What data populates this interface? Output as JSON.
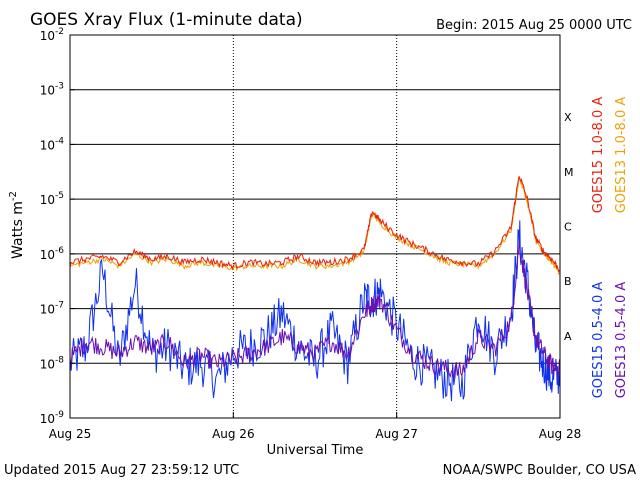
{
  "chart_data": {
    "type": "line",
    "title": "GOES Xray Flux (1-minute data)",
    "begin_label": "Begin:  2015 Aug 25 0000 UTC",
    "xlabel": "Universal Time",
    "ylabel_main": "Watts m",
    "ylabel_exp": "-2",
    "x_ticks": [
      "Aug 25",
      "Aug 26",
      "Aug 27",
      "Aug 28"
    ],
    "x_range_days": [
      0,
      3
    ],
    "y_scale": "log",
    "ylim": [
      1e-09,
      0.01
    ],
    "y_ticks": [
      {
        "base": "10",
        "exp": "-2",
        "value": 0.01
      },
      {
        "base": "10",
        "exp": "-3",
        "value": 0.001
      },
      {
        "base": "10",
        "exp": "-4",
        "value": 0.0001
      },
      {
        "base": "10",
        "exp": "-5",
        "value": 1e-05
      },
      {
        "base": "10",
        "exp": "-6",
        "value": 1e-06
      },
      {
        "base": "10",
        "exp": "-7",
        "value": 1e-07
      },
      {
        "base": "10",
        "exp": "-8",
        "value": 1e-08
      },
      {
        "base": "10",
        "exp": "-9",
        "value": 1e-09
      }
    ],
    "flare_classes": [
      {
        "label": "X",
        "value": 0.000316
      },
      {
        "label": "M",
        "value": 3.16e-05
      },
      {
        "label": "C",
        "value": 3.16e-06
      },
      {
        "label": "B",
        "value": 3.16e-07
      },
      {
        "label": "A",
        "value": 3.16e-08
      }
    ],
    "series": [
      {
        "name": "GOES15 1.0-8.0 A",
        "color": "#e8200c",
        "points": [
          [
            0.0,
            7e-07
          ],
          [
            0.1,
            8e-07
          ],
          [
            0.2,
            9e-07
          ],
          [
            0.3,
            7e-07
          ],
          [
            0.4,
            1.1e-06
          ],
          [
            0.5,
            8e-07
          ],
          [
            0.6,
            9e-07
          ],
          [
            0.7,
            7e-07
          ],
          [
            0.8,
            8e-07
          ],
          [
            0.9,
            7e-07
          ],
          [
            1.0,
            6e-07
          ],
          [
            1.1,
            7e-07
          ],
          [
            1.2,
            6.5e-07
          ],
          [
            1.3,
            7e-07
          ],
          [
            1.4,
            9e-07
          ],
          [
            1.5,
            7e-07
          ],
          [
            1.6,
            7e-07
          ],
          [
            1.7,
            8e-07
          ],
          [
            1.8,
            1.2e-06
          ],
          [
            1.85,
            6e-06
          ],
          [
            1.9,
            4e-06
          ],
          [
            2.0,
            2.2e-06
          ],
          [
            2.1,
            1.5e-06
          ],
          [
            2.2,
            1.1e-06
          ],
          [
            2.3,
            8e-07
          ],
          [
            2.4,
            7e-07
          ],
          [
            2.5,
            6.5e-07
          ],
          [
            2.6,
            1.1e-06
          ],
          [
            2.7,
            3e-06
          ],
          [
            2.75,
            2.8e-05
          ],
          [
            2.8,
            1e-05
          ],
          [
            2.85,
            2e-06
          ],
          [
            2.9,
            1.1e-06
          ],
          [
            2.95,
            8e-07
          ],
          [
            3.0,
            5e-07
          ]
        ]
      },
      {
        "name": "GOES13 1.0-8.0 A",
        "color": "#f0a000",
        "points": [
          [
            0.0,
            6e-07
          ],
          [
            0.1,
            7e-07
          ],
          [
            0.2,
            8e-07
          ],
          [
            0.3,
            6e-07
          ],
          [
            0.4,
            1e-06
          ],
          [
            0.5,
            7e-07
          ],
          [
            0.6,
            8e-07
          ],
          [
            0.7,
            6e-07
          ],
          [
            0.8,
            7e-07
          ],
          [
            0.9,
            6e-07
          ],
          [
            1.0,
            5.5e-07
          ],
          [
            1.1,
            6e-07
          ],
          [
            1.2,
            6e-07
          ],
          [
            1.3,
            6e-07
          ],
          [
            1.4,
            8e-07
          ],
          [
            1.5,
            6e-07
          ],
          [
            1.6,
            6e-07
          ],
          [
            1.7,
            7e-07
          ],
          [
            1.8,
            1.1e-06
          ],
          [
            1.85,
            5.5e-06
          ],
          [
            1.9,
            3.6e-06
          ],
          [
            2.0,
            2e-06
          ],
          [
            2.1,
            1.4e-06
          ],
          [
            2.2,
            1e-06
          ],
          [
            2.3,
            7e-07
          ],
          [
            2.4,
            6.5e-07
          ],
          [
            2.5,
            6e-07
          ],
          [
            2.6,
            1e-06
          ],
          [
            2.7,
            2.7e-06
          ],
          [
            2.75,
            2.5e-05
          ],
          [
            2.8,
            9e-06
          ],
          [
            2.85,
            1.8e-06
          ],
          [
            2.9,
            1e-06
          ],
          [
            2.95,
            7e-07
          ],
          [
            3.0,
            4.5e-07
          ]
        ]
      },
      {
        "name": "GOES15 0.5-4.0 A",
        "color": "#1030f0",
        "points": [
          [
            0.0,
            1e-08
          ],
          [
            0.1,
            2e-08
          ],
          [
            0.2,
            5e-07
          ],
          [
            0.3,
            1e-08
          ],
          [
            0.4,
            3e-07
          ],
          [
            0.5,
            1.5e-08
          ],
          [
            0.6,
            2e-08
          ],
          [
            0.7,
            8e-09
          ],
          [
            0.8,
            1e-08
          ],
          [
            0.9,
            5e-09
          ],
          [
            1.0,
            1.5e-08
          ],
          [
            1.1,
            2e-08
          ],
          [
            1.2,
            3e-08
          ],
          [
            1.3,
            8e-08
          ],
          [
            1.4,
            2e-08
          ],
          [
            1.5,
            1e-08
          ],
          [
            1.6,
            4e-08
          ],
          [
            1.7,
            1e-08
          ],
          [
            1.8,
            1.5e-07
          ],
          [
            1.85,
            1.5e-07
          ],
          [
            1.9,
            2e-07
          ],
          [
            2.0,
            5e-08
          ],
          [
            2.1,
            1.2e-08
          ],
          [
            2.2,
            8e-09
          ],
          [
            2.3,
            5e-09
          ],
          [
            2.4,
            4e-09
          ],
          [
            2.5,
            8e-08
          ],
          [
            2.6,
            1.5e-08
          ],
          [
            2.7,
            8e-08
          ],
          [
            2.75,
            2e-06
          ],
          [
            2.8,
            3e-07
          ],
          [
            2.85,
            2e-08
          ],
          [
            2.9,
            1e-08
          ],
          [
            2.95,
            5e-09
          ],
          [
            3.0,
            6e-09
          ]
        ]
      },
      {
        "name": "GOES13 0.5-4.0 A",
        "color": "#6a10b0",
        "points": [
          [
            0.0,
            1.2e-08
          ],
          [
            0.1,
            2.5e-08
          ],
          [
            0.2,
            2e-08
          ],
          [
            0.3,
            1.5e-08
          ],
          [
            0.4,
            2.5e-08
          ],
          [
            0.5,
            1.8e-08
          ],
          [
            0.6,
            2.5e-08
          ],
          [
            0.7,
            1e-08
          ],
          [
            0.8,
            1.4e-08
          ],
          [
            0.9,
            1e-08
          ],
          [
            1.0,
            1.2e-08
          ],
          [
            1.1,
            1.5e-08
          ],
          [
            1.2,
            2e-08
          ],
          [
            1.3,
            3e-08
          ],
          [
            1.4,
            2e-08
          ],
          [
            1.5,
            1.5e-08
          ],
          [
            1.6,
            2.5e-08
          ],
          [
            1.7,
            1.5e-08
          ],
          [
            1.8,
            8e-08
          ],
          [
            1.85,
            1.2e-07
          ],
          [
            1.9,
            1.5e-07
          ],
          [
            2.0,
            4e-08
          ],
          [
            2.1,
            1.5e-08
          ],
          [
            2.2,
            1e-08
          ],
          [
            2.3,
            8e-09
          ],
          [
            2.4,
            7e-09
          ],
          [
            2.5,
            3e-08
          ],
          [
            2.6,
            1.8e-08
          ],
          [
            2.7,
            6e-08
          ],
          [
            2.75,
            1.5e-06
          ],
          [
            2.8,
            2e-07
          ],
          [
            2.85,
            3e-08
          ],
          [
            2.9,
            1.5e-08
          ],
          [
            2.95,
            9e-09
          ],
          [
            3.0,
            8e-09
          ]
        ]
      }
    ]
  },
  "footer": {
    "updated": "Updated 2015 Aug 27 23:59:12 UTC",
    "credit": "NOAA/SWPC Boulder, CO USA"
  }
}
